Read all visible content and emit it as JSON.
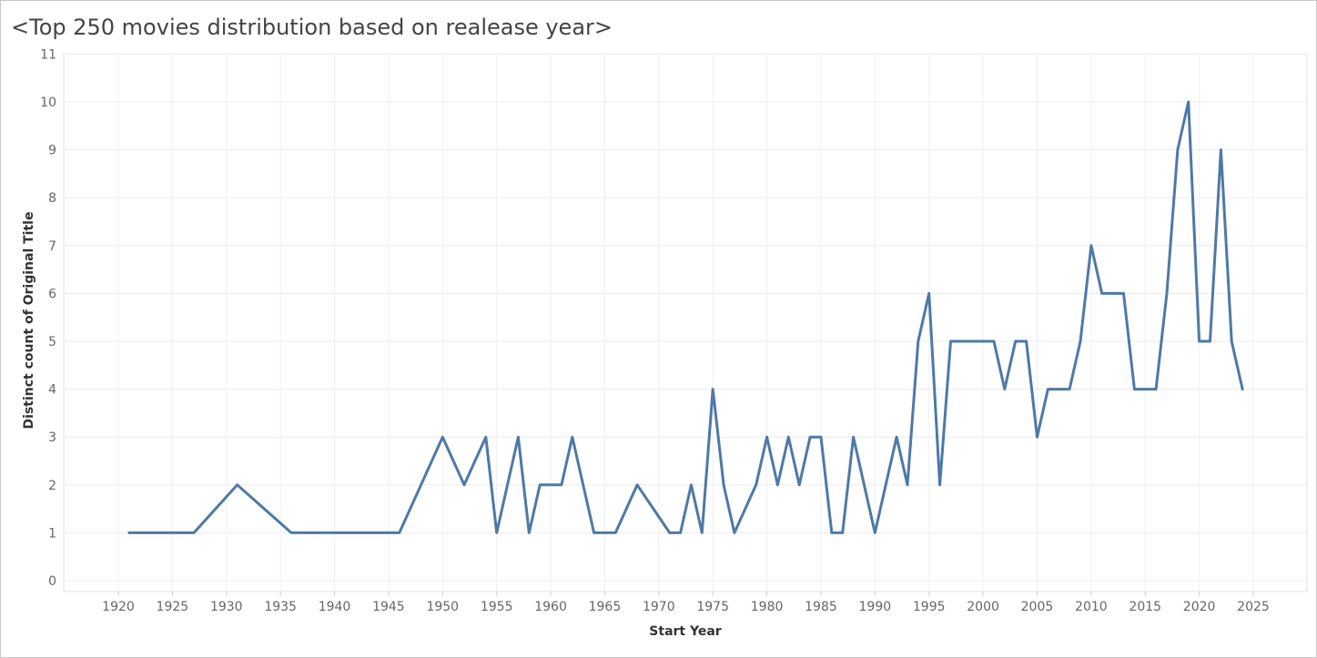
{
  "chart_data": {
    "type": "line",
    "title": "<Top 250 movies distribution based on realease year>",
    "xlabel": "Start Year",
    "ylabel": "Distinct count of Original Title",
    "xlim": [
      1915,
      2028
    ],
    "ylim": [
      0,
      11
    ],
    "x_ticks": [
      1920,
      1925,
      1930,
      1935,
      1940,
      1945,
      1950,
      1955,
      1960,
      1965,
      1970,
      1975,
      1980,
      1985,
      1990,
      1995,
      2000,
      2005,
      2010,
      2015,
      2020,
      2025
    ],
    "y_ticks": [
      0,
      1,
      2,
      3,
      4,
      5,
      6,
      7,
      8,
      9,
      10,
      11
    ],
    "grid": true,
    "line_color": "#4e79a7",
    "series": [
      {
        "x": [
          1921,
          1927,
          1931,
          1936,
          1946,
          1950,
          1952,
          1954,
          1955,
          1957,
          1958,
          1959,
          1961,
          1962,
          1964,
          1966,
          1968,
          1971,
          1972,
          1973,
          1974,
          1975,
          1976,
          1977,
          1979,
          1980,
          1981,
          1982,
          1983,
          1984,
          1985,
          1986,
          1987,
          1988,
          1990,
          1992,
          1993,
          1994,
          1995,
          1996,
          1997,
          2001,
          2002,
          2003,
          2004,
          2005,
          2006,
          2008,
          2009,
          2010,
          2011,
          2013,
          2014,
          2016,
          2017,
          2018,
          2019,
          2020,
          2021,
          2022,
          2023,
          2024
        ],
        "y": [
          1,
          1,
          2,
          1,
          1,
          3,
          2,
          3,
          1,
          3,
          1,
          2,
          2,
          3,
          1,
          1,
          2,
          1,
          1,
          2,
          1,
          4,
          2,
          1,
          2,
          3,
          2,
          3,
          2,
          3,
          3,
          1,
          1,
          3,
          1,
          3,
          2,
          5,
          6,
          2,
          5,
          5,
          4,
          5,
          5,
          3,
          4,
          4,
          5,
          7,
          6,
          6,
          4,
          4,
          6,
          9,
          10,
          5,
          5,
          9,
          5,
          4
        ]
      }
    ]
  }
}
